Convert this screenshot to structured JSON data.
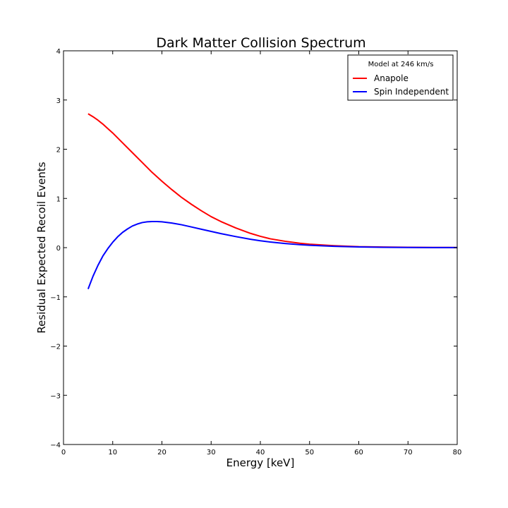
{
  "chart_data": {
    "type": "line",
    "title": "Dark Matter Collision Spectrum",
    "xlabel": "Energy [keV]",
    "ylabel": "Residual Expected Recoil Events",
    "xlim": [
      0,
      80
    ],
    "ylim": [
      -4,
      4
    ],
    "xticks": [
      0,
      10,
      20,
      30,
      40,
      50,
      60,
      70,
      80
    ],
    "yticks": [
      -4,
      -3,
      -2,
      -1,
      0,
      1,
      2,
      3,
      4
    ],
    "grid": false,
    "legend": {
      "title": "Model at 246 km/s",
      "placement": "top-right"
    },
    "series": [
      {
        "name": "Anapole",
        "color": "#ff0000",
        "x": [
          5,
          6,
          7,
          8,
          9,
          10,
          12,
          14,
          16,
          18,
          20,
          22,
          24,
          26,
          28,
          30,
          32,
          35,
          38,
          40,
          42,
          45,
          48,
          50,
          55,
          60,
          65,
          70,
          75,
          80
        ],
        "y": [
          2.72,
          2.66,
          2.59,
          2.51,
          2.42,
          2.33,
          2.13,
          1.93,
          1.73,
          1.53,
          1.35,
          1.18,
          1.02,
          0.88,
          0.75,
          0.63,
          0.53,
          0.4,
          0.29,
          0.23,
          0.18,
          0.13,
          0.09,
          0.07,
          0.04,
          0.02,
          0.012,
          0.007,
          0.004,
          0.002
        ]
      },
      {
        "name": "Spin Independent",
        "color": "#0000ff",
        "x": [
          5,
          6,
          7,
          8,
          9,
          10,
          11,
          12,
          13,
          14,
          15,
          16,
          17,
          18,
          19,
          20,
          22,
          24,
          26,
          28,
          30,
          32,
          35,
          38,
          40,
          42,
          45,
          48,
          50,
          55,
          60,
          65,
          70,
          75,
          80
        ],
        "y": [
          -0.84,
          -0.58,
          -0.36,
          -0.17,
          -0.02,
          0.11,
          0.22,
          0.31,
          0.38,
          0.44,
          0.48,
          0.51,
          0.525,
          0.53,
          0.53,
          0.525,
          0.5,
          0.465,
          0.42,
          0.375,
          0.33,
          0.285,
          0.225,
          0.17,
          0.14,
          0.115,
          0.085,
          0.06,
          0.048,
          0.027,
          0.015,
          0.008,
          0.004,
          0.002,
          0.001
        ]
      }
    ]
  }
}
